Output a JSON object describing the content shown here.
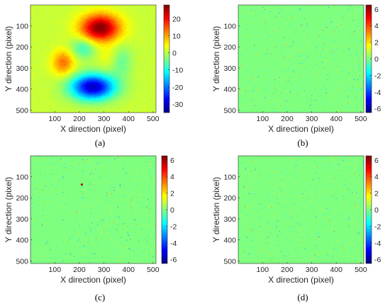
{
  "chart_data": [
    {
      "type": "heatmap",
      "panel_label": "(a)",
      "xlabel": "X direction (pixel)",
      "ylabel": "Y direction (pixel)",
      "xlim": [
        1,
        512
      ],
      "ylim": [
        1,
        512
      ],
      "y_reversed": true,
      "xticks": [
        100,
        200,
        300,
        400,
        500
      ],
      "yticks": [
        100,
        200,
        300,
        400,
        500
      ],
      "colorbar": {
        "colormap": "jet",
        "range": [
          -35,
          28
        ],
        "ticks": [
          20,
          10,
          0,
          -10,
          -20,
          -30
        ]
      },
      "background_value": 1,
      "features": [
        {
          "x": 285,
          "y": 110,
          "sigma_x": 55,
          "sigma_y": 45,
          "peak": 27
        },
        {
          "x": 255,
          "y": 390,
          "sigma_x": 62,
          "sigma_y": 42,
          "peak": -32
        },
        {
          "x": 135,
          "y": 275,
          "sigma_x": 32,
          "sigma_y": 42,
          "peak": 12
        },
        {
          "x": 215,
          "y": 205,
          "sigma_x": 35,
          "sigma_y": 35,
          "peak": -9
        },
        {
          "x": 370,
          "y": 270,
          "sigma_x": 32,
          "sigma_y": 52,
          "peak": -6
        },
        {
          "x": 320,
          "y": 250,
          "sigma_x": 30,
          "sigma_y": 40,
          "peak": 3
        }
      ]
    },
    {
      "type": "heatmap",
      "panel_label": "(b)",
      "xlabel": "X direction (pixel)",
      "ylabel": "Y direction (pixel)",
      "xlim": [
        1,
        512
      ],
      "ylim": [
        1,
        512
      ],
      "y_reversed": true,
      "xticks": [
        100,
        200,
        300,
        400,
        500
      ],
      "yticks": [
        100,
        200,
        300,
        400,
        500
      ],
      "colorbar": {
        "colormap": "jet",
        "range": [
          -6.5,
          6.5
        ],
        "ticks": [
          6,
          4,
          2,
          0,
          -2,
          -4,
          -6
        ]
      },
      "background_value": 0,
      "features": []
    },
    {
      "type": "heatmap",
      "panel_label": "(c)",
      "xlabel": "X direction (pixel)",
      "ylabel": "Y direction (pixel)",
      "xlim": [
        1,
        512
      ],
      "ylim": [
        1,
        512
      ],
      "y_reversed": true,
      "xticks": [
        100,
        200,
        300,
        400,
        500
      ],
      "yticks": [
        100,
        200,
        300,
        400,
        500
      ],
      "colorbar": {
        "colormap": "jet",
        "range": [
          -6.5,
          6.5
        ],
        "ticks": [
          6,
          4,
          2,
          0,
          -2,
          -4,
          -6
        ]
      },
      "background_value": 0,
      "features": [],
      "spikes": [
        {
          "x": 210,
          "y": 137,
          "value": 6
        }
      ]
    },
    {
      "type": "heatmap",
      "panel_label": "(d)",
      "xlabel": "X direction (pixel)",
      "ylabel": "Y direction (pixel)",
      "xlim": [
        1,
        512
      ],
      "ylim": [
        1,
        512
      ],
      "y_reversed": true,
      "xticks": [
        100,
        200,
        300,
        400,
        500
      ],
      "yticks": [
        100,
        200,
        300,
        400,
        500
      ],
      "colorbar": {
        "colormap": "jet",
        "range": [
          -6.5,
          6.5
        ],
        "ticks": [
          6,
          4,
          2,
          0,
          -2,
          -4,
          -6
        ]
      },
      "background_value": 0,
      "features": []
    }
  ]
}
